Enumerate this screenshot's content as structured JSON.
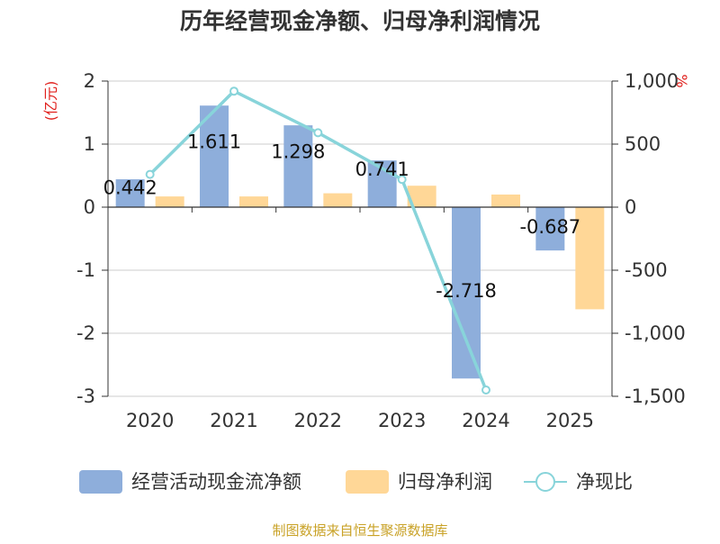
{
  "chart_data": {
    "type": "bar",
    "title": "历年经营现金净额、归母净利润情况",
    "ylabel_left": "(亿元)",
    "ylabel_right": "%",
    "categories": [
      "2020",
      "2021",
      "2022",
      "2023",
      "2024",
      "2025"
    ],
    "ylim_left": [
      -3,
      2
    ],
    "ylim_right": [
      -1500,
      1000
    ],
    "yticks_left": [
      "2",
      "1",
      "0",
      "-1",
      "-2",
      "-3"
    ],
    "yticks_right": [
      "1,000",
      "500",
      "0",
      "-500",
      "-1,000",
      "-1,500"
    ],
    "series": [
      {
        "name": "经营活动现金流净额",
        "type": "bar",
        "axis": "left",
        "color": "#8eaedb",
        "values": [
          0.442,
          1.611,
          1.298,
          0.741,
          -2.718,
          -0.687
        ],
        "labels": [
          "0.442",
          "1.611",
          "1.298",
          "0.741",
          "-2.718",
          "-0.687"
        ]
      },
      {
        "name": "归母净利润",
        "type": "bar",
        "axis": "left",
        "color": "#ffd797",
        "values": [
          0.17,
          0.17,
          0.22,
          0.34,
          0.2,
          -1.62
        ]
      },
      {
        "name": "净现比",
        "type": "line",
        "axis": "right",
        "color": "#88d4da",
        "values": [
          260,
          920,
          590,
          220,
          -1450,
          null
        ]
      }
    ],
    "legend_position": "bottom",
    "source": "制图数据来自恒生聚源数据库"
  }
}
